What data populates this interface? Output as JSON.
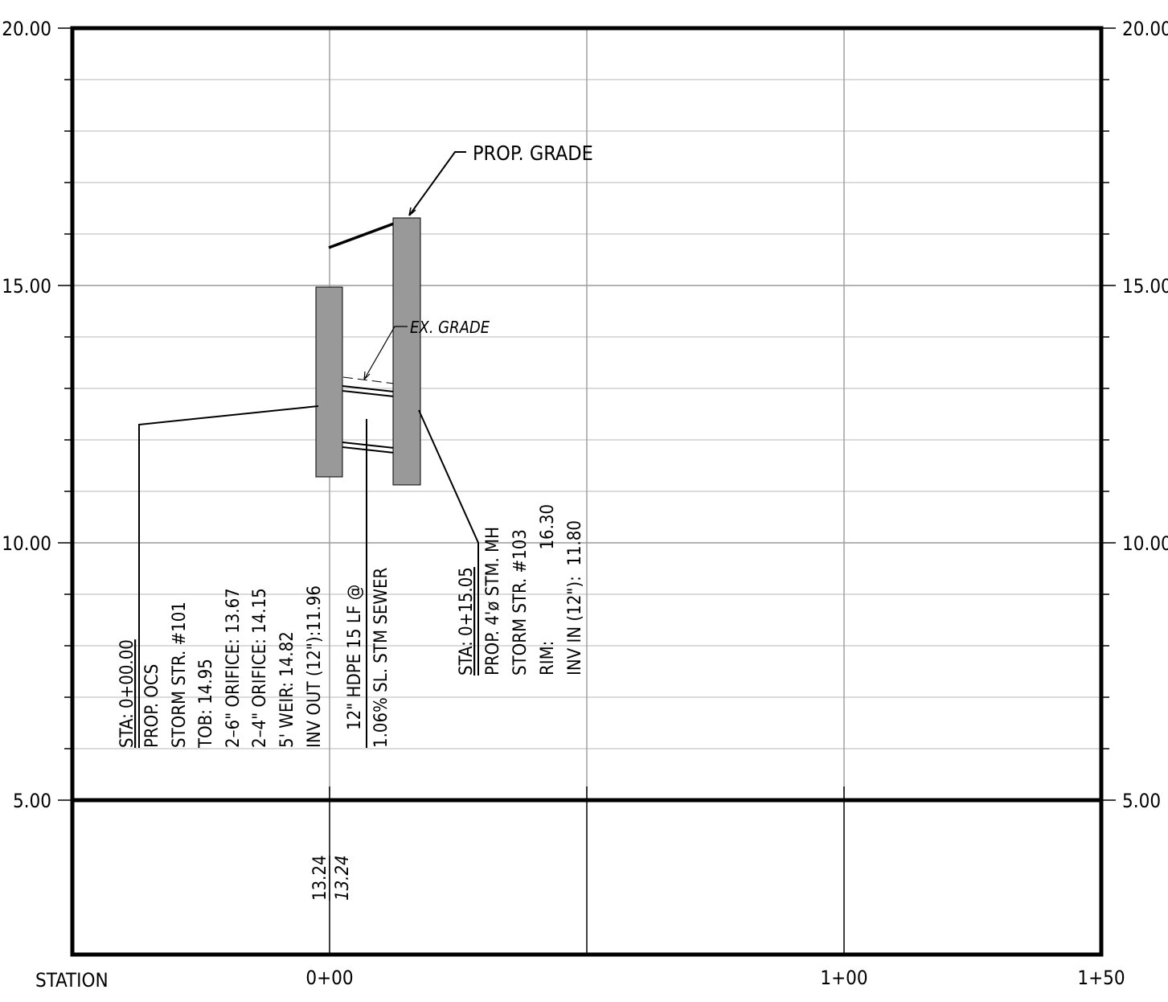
{
  "axis": {
    "left_labels": [
      "20.00",
      "15.00",
      "10.00",
      "5.00"
    ],
    "right_labels": [
      "20.00",
      "15.00",
      "10.00",
      "5.00"
    ],
    "station_caption": "STATION",
    "station_labels": [
      "0+00",
      "1+00",
      "1+50"
    ]
  },
  "callouts": {
    "prop_grade": "PROP. GRADE",
    "ex_grade": "EX. GRADE"
  },
  "structure_101": {
    "lines": [
      "STA: 0+00.00",
      "PROP. OCS",
      "STORM STR. #101",
      "TOB:   14.95",
      "2–6\" ORIFICE: 13.67",
      "2–4\" ORIFICE: 14.15",
      "5' WEIR: 14.82",
      "INV OUT (12\"):11.96"
    ]
  },
  "pipe": {
    "line1": "12\" HDPE 15 LF @",
    "line2": "1.06% SL. STM SEWER"
  },
  "structure_103": {
    "lines": [
      "STA: 0+15.05",
      "PROP. 4'ø STM. MH",
      "STORM STR. #103",
      "RIM:                  16.30",
      "INV IN (12\"):  11.80"
    ]
  },
  "elevation_band": {
    "proposed": "13.24",
    "existing": "13.24"
  }
}
